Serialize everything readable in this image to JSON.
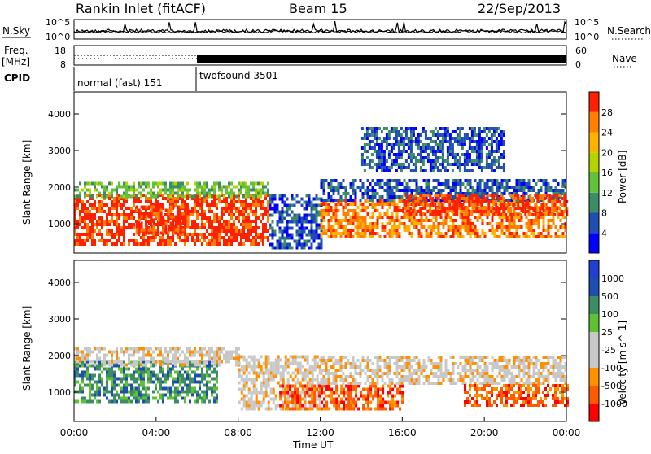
{
  "header": {
    "station": "Rankin Inlet (fitACF)",
    "beam": "Beam 15",
    "date": "22/Sep/2013"
  },
  "top_panel": {
    "left_label": "N.Sky",
    "right_label": "N.Search",
    "left_ticks": [
      "10^5",
      "10^0"
    ],
    "right_ticks": [
      "10^5",
      "10^0"
    ]
  },
  "freq_panel": {
    "left_label": "Freq.",
    "left_unit": "[MHz]",
    "right_label": "Nave",
    "left_ticks": [
      "18",
      "8"
    ],
    "right_ticks": [
      "60",
      "0"
    ]
  },
  "cpid_panel": {
    "label": "CPID",
    "modes": [
      {
        "name": "normal (fast) 151",
        "start_hour": 0,
        "end_hour": 6.05
      },
      {
        "name": "twofsound 3501",
        "start_hour": 6.05,
        "end_hour": 24
      }
    ]
  },
  "colors": {
    "power": [
      "#0000ff",
      "#1e4eb0",
      "#3d8c66",
      "#63c23c",
      "#b4d400",
      "#ffb300",
      "#ff7f00",
      "#ff2000"
    ],
    "velocity": [
      "#ff0000",
      "#ff5a00",
      "#ff9000",
      "#c8c8c8",
      "#c8c8c8",
      "#5ec232",
      "#3d8c66",
      "#1e4eb0",
      "#2040d0"
    ]
  },
  "chart_data": [
    {
      "type": "heatmap",
      "quantity": "Power",
      "ylabel": "Slant Range [km]",
      "colorbar_label": "Power [dB]",
      "colorbar_ticks": [
        "4",
        "8",
        "12",
        "16",
        "20",
        "24",
        "28"
      ],
      "colorbar_range": [
        0,
        32
      ],
      "xlim_hours": [
        0,
        24
      ],
      "ylim": [
        200,
        4600
      ],
      "y_ticks": [
        "1000",
        "2000",
        "3000",
        "4000"
      ],
      "y_tick_values": [
        1000,
        2000,
        3000,
        4000
      ],
      "regions": [
        {
          "t0": 0,
          "t1": 9.5,
          "r0": 400,
          "r1": 1800,
          "level": 7
        },
        {
          "t0": 0,
          "t1": 9.5,
          "r0": 1700,
          "r1": 2100,
          "level": 3
        },
        {
          "t0": 3,
          "t1": 5.5,
          "r0": 700,
          "r1": 1500,
          "level": 7
        },
        {
          "t0": 9.5,
          "t1": 12,
          "r0": 300,
          "r1": 1800,
          "level": 1
        },
        {
          "t0": 12,
          "t1": 24,
          "r0": 600,
          "r1": 1600,
          "level": 6
        },
        {
          "t0": 12,
          "t1": 24,
          "r0": 1600,
          "r1": 2200,
          "level": 1
        },
        {
          "t0": 16,
          "t1": 24,
          "r0": 1200,
          "r1": 1800,
          "level": 7
        },
        {
          "t0": 14,
          "t1": 21,
          "r0": 2400,
          "r1": 3600,
          "level": 1
        }
      ]
    },
    {
      "type": "heatmap",
      "quantity": "Velocity",
      "ylabel": "Slant Range [km]",
      "colorbar_label": "Velocity [m s^-1]",
      "colorbar_ticks": [
        "-1000",
        "-500",
        "-100",
        "-25",
        "25",
        "100",
        "500",
        "1000"
      ],
      "colorbar_range": [
        -1000,
        1000
      ],
      "xlim_hours": [
        0,
        24
      ],
      "ylim": [
        200,
        4600
      ],
      "y_ticks": [
        "1000",
        "2000",
        "3000",
        "4000"
      ],
      "y_tick_values": [
        1000,
        2000,
        3000,
        4000
      ],
      "x_ticks": [
        "00:00",
        "04:00",
        "08:00",
        "12:00",
        "16:00",
        "20:00",
        "00:00"
      ],
      "xlabel": "Time UT",
      "regions": [
        {
          "t0": 0,
          "t1": 7,
          "r0": 700,
          "r1": 1800,
          "level": 6
        },
        {
          "t0": 0,
          "t1": 8,
          "r0": 1700,
          "r1": 2200,
          "level": 3
        },
        {
          "t0": 8,
          "t1": 12,
          "r0": 500,
          "r1": 2000,
          "level": 3
        },
        {
          "t0": 10,
          "t1": 16,
          "r0": 500,
          "r1": 1200,
          "level": 1
        },
        {
          "t0": 12,
          "t1": 24,
          "r0": 1200,
          "r1": 2000,
          "level": 3
        },
        {
          "t0": 19,
          "t1": 24,
          "r0": 600,
          "r1": 1200,
          "level": 1
        }
      ]
    }
  ]
}
